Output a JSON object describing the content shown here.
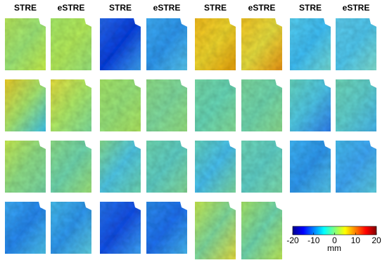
{
  "headers": [
    "STRE",
    "eSTRE",
    "STRE",
    "eSTRE",
    "STRE",
    "eSTRE",
    "STRE",
    "eSTRE"
  ],
  "colorbar": {
    "lim": [
      -20,
      20
    ],
    "ticks": [
      -20,
      -10,
      0,
      10,
      20
    ],
    "label": "mm"
  }
}
